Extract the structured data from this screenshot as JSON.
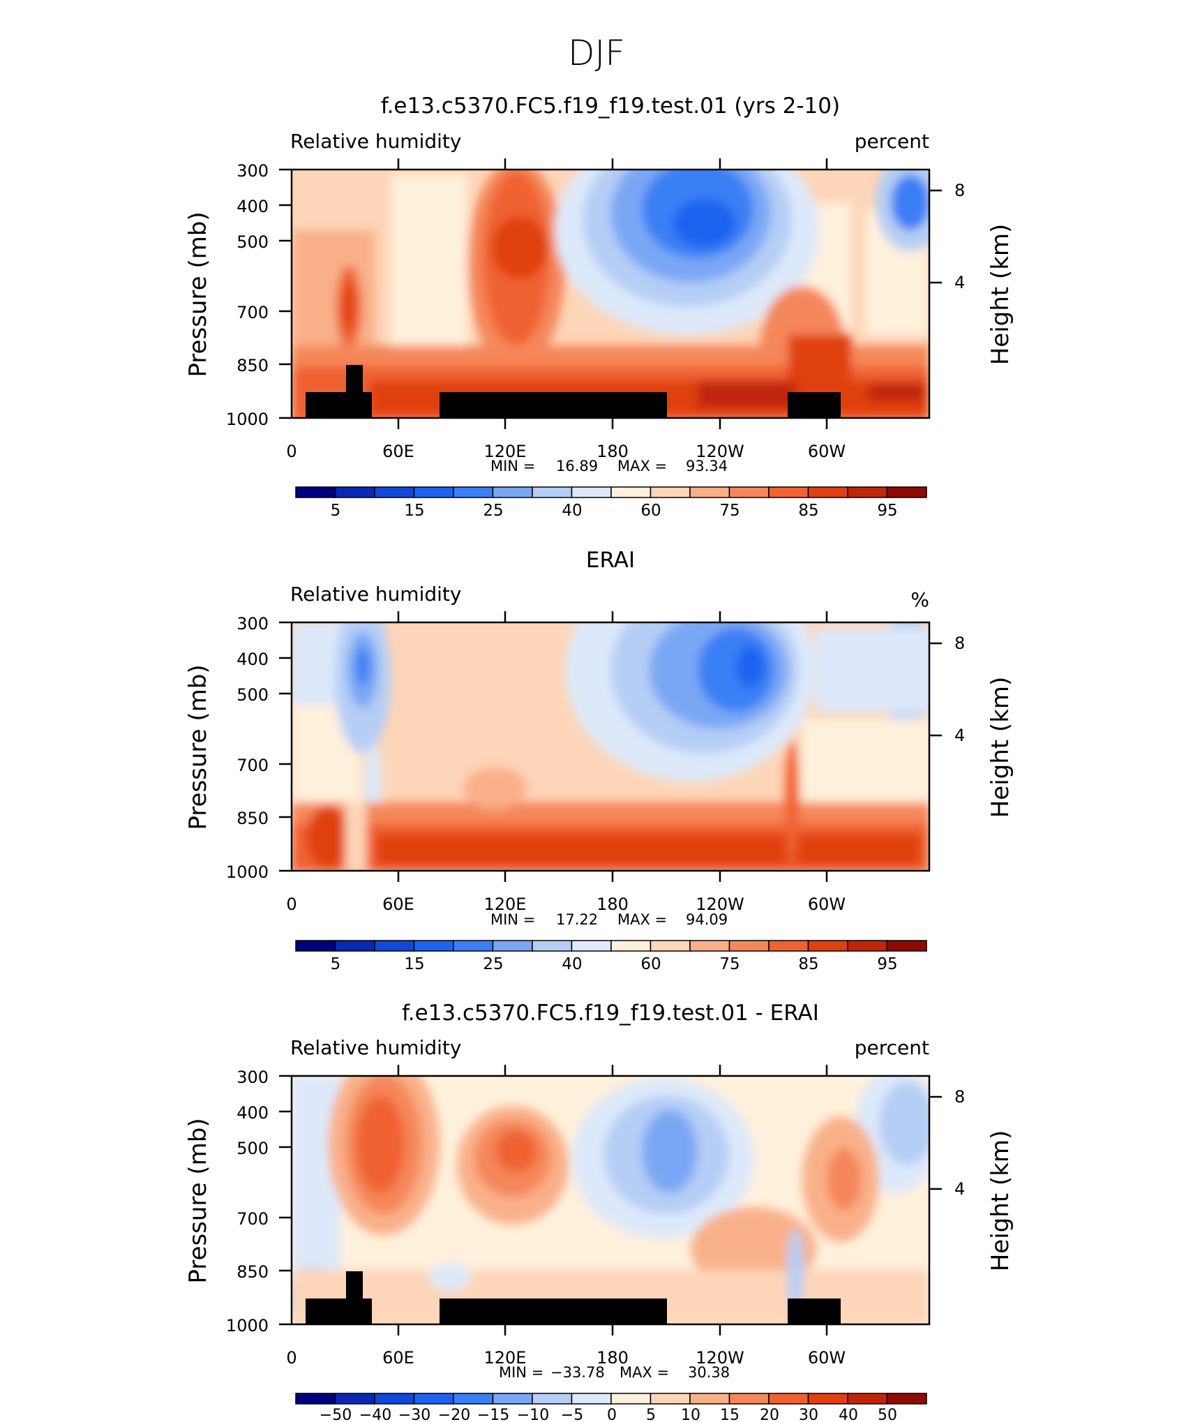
{
  "page_title": "DJF",
  "panels": [
    {
      "title": "f.e13.c5370.FC5.f19_f19.test.01 (yrs 2-10)",
      "left_label": "Relative  humidity",
      "right_label": "percent",
      "y_label": "Pressure  (mb)",
      "right_axis_label": "Height  (km)",
      "min_label": "MIN =",
      "min_value": "16.89",
      "max_label": "MAX =",
      "max_value": "93.34"
    },
    {
      "title": "ERAI",
      "left_label": "Relative  humidity",
      "right_label": "%",
      "y_label": "Pressure  (mb)",
      "right_axis_label": "Height  (km)",
      "min_label": "MIN =",
      "min_value": "17.22",
      "max_label": "MAX =",
      "max_value": "94.09"
    },
    {
      "title": "f.e13.c5370.FC5.f19_f19.test.01 - ERAI",
      "left_label": "Relative  humidity",
      "right_label": "percent",
      "y_label": "Pressure  (mb)",
      "right_axis_label": "Height  (km)",
      "min_label": "MIN =",
      "min_value": "−33.78",
      "max_label": "MAX =",
      "max_value": "30.38"
    }
  ],
  "chart_data": [
    {
      "type": "heatmap",
      "title": "f.e13.c5370.FC5.f19_f19.test.01 (yrs 2-10)",
      "variable": "Relative humidity",
      "units": "percent",
      "xlabel": "",
      "ylabel": "Pressure (mb)",
      "y2label": "Height (km)",
      "x_ticks": [
        "0",
        "60E",
        "120E",
        "180",
        "120W",
        "60W"
      ],
      "y_ticks": [
        "300",
        "400",
        "500",
        "700",
        "850",
        "1000"
      ],
      "y2_ticks": [
        "8",
        "4"
      ],
      "colorbar_ticks": [
        "5",
        "15",
        "25",
        "40",
        "60",
        "75",
        "85",
        "95"
      ],
      "colors": [
        "#00007f",
        "#0a27b5",
        "#1048d9",
        "#1e63f0",
        "#3a7ff5",
        "#7aa7f5",
        "#b6cef5",
        "#dde9fa",
        "#fff0dc",
        "#fdd5b8",
        "#f9b089",
        "#f5875a",
        "#f06230",
        "#e0400f",
        "#c02508",
        "#8f0a00"
      ],
      "min": 16.89,
      "max": 93.34
    },
    {
      "type": "heatmap",
      "title": "ERAI",
      "variable": "Relative humidity",
      "units": "%",
      "xlabel": "",
      "ylabel": "Pressure (mb)",
      "y2label": "Height (km)",
      "x_ticks": [
        "0",
        "60E",
        "120E",
        "180",
        "120W",
        "60W"
      ],
      "y_ticks": [
        "300",
        "400",
        "500",
        "700",
        "850",
        "1000"
      ],
      "y2_ticks": [
        "8",
        "4"
      ],
      "colorbar_ticks": [
        "5",
        "15",
        "25",
        "40",
        "60",
        "75",
        "85",
        "95"
      ],
      "colors": [
        "#00007f",
        "#0a27b5",
        "#1048d9",
        "#1e63f0",
        "#3a7ff5",
        "#7aa7f5",
        "#b6cef5",
        "#dde9fa",
        "#fff0dc",
        "#fdd5b8",
        "#f9b089",
        "#f5875a",
        "#f06230",
        "#e0400f",
        "#c02508",
        "#8f0a00"
      ],
      "min": 17.22,
      "max": 94.09
    },
    {
      "type": "heatmap",
      "title": "f.e13.c5370.FC5.f19_f19.test.01 - ERAI",
      "variable": "Relative humidity",
      "units": "percent",
      "xlabel": "",
      "ylabel": "Pressure (mb)",
      "y2label": "Height (km)",
      "x_ticks": [
        "0",
        "60E",
        "120E",
        "180",
        "120W",
        "60W"
      ],
      "y_ticks": [
        "300",
        "400",
        "500",
        "700",
        "850",
        "1000"
      ],
      "y2_ticks": [
        "8",
        "4"
      ],
      "colorbar_ticks": [
        "−50",
        "−40",
        "−30",
        "−20",
        "−15",
        "−10",
        "−5",
        "0",
        "5",
        "10",
        "15",
        "20",
        "30",
        "40",
        "50"
      ],
      "colors": [
        "#00007f",
        "#0a27b5",
        "#1048d9",
        "#1e63f0",
        "#3a7ff5",
        "#7aa7f5",
        "#b6cef5",
        "#dde9fa",
        "#fff0dc",
        "#fdd5b8",
        "#f9b089",
        "#f5875a",
        "#f06230",
        "#e0400f",
        "#c02508",
        "#8f0a00"
      ],
      "min": -33.78,
      "max": 30.38
    }
  ]
}
